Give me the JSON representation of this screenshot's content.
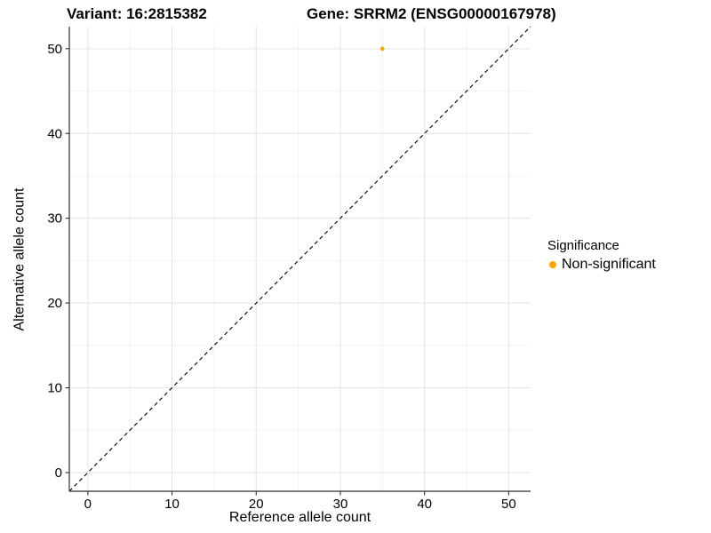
{
  "header": {
    "variant_title": "Variant: 16:2815382",
    "gene_title": "Gene: SRRM2 (ENSG00000167978)"
  },
  "chart_data": {
    "type": "scatter",
    "xlabel": "Reference allele count",
    "ylabel": "Alternative allele count",
    "xlim": [
      -2.2,
      52.6
    ],
    "ylim": [
      -2.2,
      52.6
    ],
    "x_ticks": [
      0,
      10,
      20,
      30,
      40,
      50
    ],
    "y_ticks": [
      0,
      10,
      20,
      30,
      40,
      50
    ],
    "x_minor_gridlines": [
      5,
      15,
      25,
      35,
      45
    ],
    "y_minor_gridlines": [
      5,
      15,
      25,
      35,
      45
    ],
    "grid": "major+minor",
    "series": [
      {
        "name": "Non-significant",
        "color": "#FFA500",
        "points": [
          {
            "x": 35,
            "y": 50
          }
        ]
      }
    ],
    "reference_line": {
      "equation": "y = x",
      "style": "dashed",
      "color": "#000000"
    },
    "legend": {
      "title": "Significance",
      "position": "right",
      "items": [
        {
          "label": "Non-significant",
          "color": "#FFA500"
        }
      ]
    },
    "style": {
      "background": "#FFFFFF",
      "grid_major_color": "#E3E3E3",
      "grid_minor_color": "#F0F0F0",
      "axis_line_color": "#2F2F2F",
      "tick_color": "#2F2F2F",
      "text_color": "#000000"
    }
  }
}
